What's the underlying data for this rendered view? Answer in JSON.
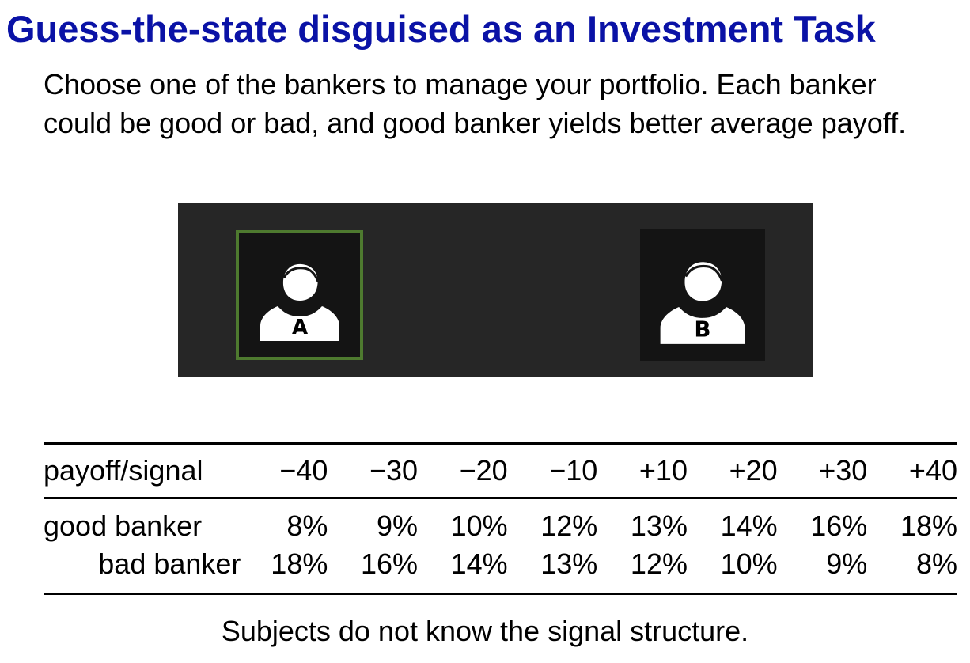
{
  "title": "Guess-the-state disguised as an Investment Task",
  "colors": {
    "title": "#0a12a6",
    "panel_bg": "#262626",
    "card_bg": "#141414",
    "selected_border": "#4e7a2f",
    "icon_fill": "#ffffff"
  },
  "intro": {
    "line1": "Choose one of the bankers to manage your portfolio. Each banker",
    "line2": "could be good or bad, and good banker yields better average payoff."
  },
  "bankers": [
    {
      "letter": "A",
      "icon": "person-icon",
      "selected": true
    },
    {
      "letter": "B",
      "icon": "person-icon",
      "selected": false
    }
  ],
  "table": {
    "header_label": "payoff/signal",
    "signals": [
      "−40",
      "−30",
      "−20",
      "−10",
      "+10",
      "+20",
      "+30",
      "+40"
    ],
    "rows": [
      {
        "label": "good banker",
        "values": [
          "8%",
          "9%",
          "10%",
          "12%",
          "13%",
          "14%",
          "16%",
          "18%"
        ]
      },
      {
        "label": "bad banker",
        "values": [
          "18%",
          "16%",
          "14%",
          "13%",
          "12%",
          "10%",
          "9%",
          "8%"
        ]
      }
    ]
  },
  "footnote": "Subjects do not know the signal structure."
}
